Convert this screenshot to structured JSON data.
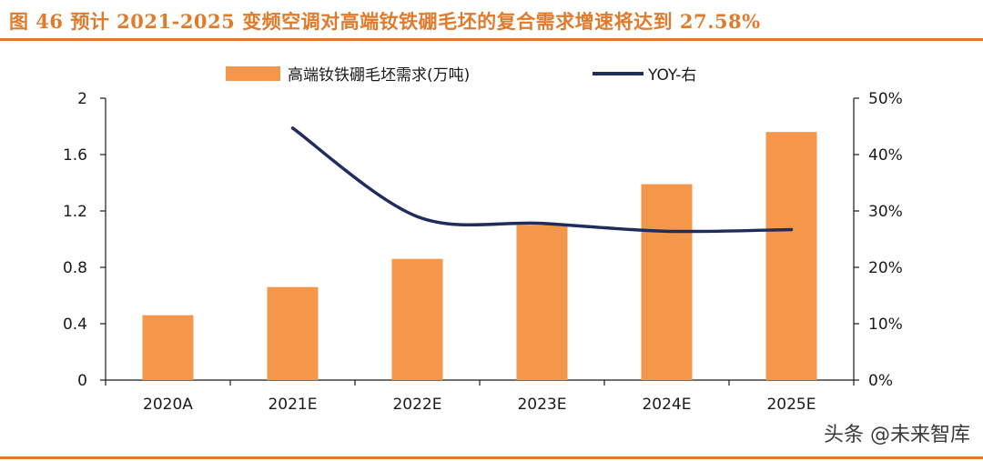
{
  "figure": {
    "title": "图 46 预计 2021-2025 变频空调对高端钕铁硼毛坯的复合需求增速将达到 27.58%",
    "watermark": "头条 @未来智库"
  },
  "colors": {
    "accent": "#e07b2c",
    "bar": "#f5974a",
    "line": "#1f2d5c",
    "axis": "#1a1a1a"
  },
  "chart_data": {
    "type": "bar",
    "categories": [
      "2020A",
      "2021E",
      "2022E",
      "2023E",
      "2024E",
      "2025E"
    ],
    "series": [
      {
        "name": "高端钕铁硼毛坯需求(万吨)",
        "type": "bar",
        "axis": "left",
        "values": [
          0.46,
          0.66,
          0.86,
          1.1,
          1.39,
          1.76
        ]
      },
      {
        "name": "YOY-右",
        "type": "line",
        "axis": "right",
        "values": [
          null,
          44.7,
          29.0,
          27.8,
          26.4,
          26.7
        ]
      }
    ],
    "y_left": {
      "min": 0,
      "max": 2,
      "ticks": [
        "0",
        "0.4",
        "0.8",
        "1.2",
        "1.6",
        "2"
      ],
      "tick_values": [
        0,
        0.4,
        0.8,
        1.2,
        1.6,
        2
      ]
    },
    "y_right": {
      "min": 0,
      "max": 50,
      "ticks": [
        "0%",
        "10%",
        "20%",
        "30%",
        "40%",
        "50%"
      ],
      "tick_values": [
        0,
        10,
        20,
        30,
        40,
        50
      ]
    },
    "legend": [
      "高端钕铁硼毛坯需求(万吨)",
      "YOY-右"
    ],
    "legend_position": "top",
    "grid": false
  }
}
